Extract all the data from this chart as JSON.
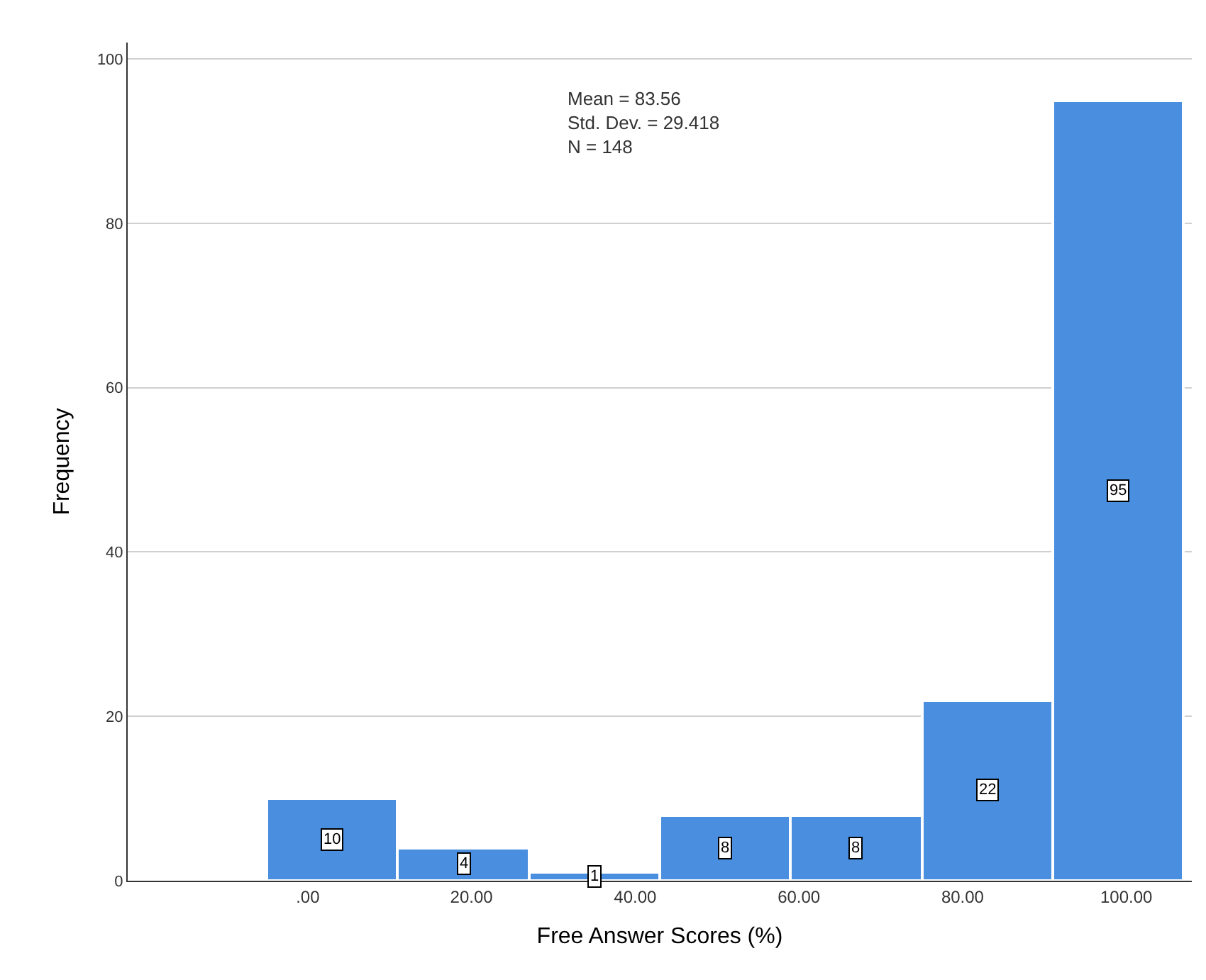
{
  "chart_data": {
    "type": "histogram",
    "xlabel": "Free Answer Scores (%)",
    "ylabel": "Frequency",
    "bins": [
      -5,
      11,
      27,
      43,
      59,
      75,
      91,
      107
    ],
    "values": [
      10,
      4,
      1,
      8,
      8,
      22,
      95
    ],
    "color": "#4a8ee0",
    "data_labels": true,
    "xlim": [
      -22,
      108
    ],
    "ylim": [
      0,
      102
    ],
    "xticks": [
      {
        "value": 0,
        "label": ".00"
      },
      {
        "value": 20,
        "label": "20.00"
      },
      {
        "value": 40,
        "label": "40.00"
      },
      {
        "value": 60,
        "label": "60.00"
      },
      {
        "value": 80,
        "label": "80.00"
      },
      {
        "value": 100,
        "label": "100.00"
      }
    ],
    "yticks": [
      0,
      20,
      40,
      60,
      80,
      100
    ],
    "grid": "y",
    "legend": false,
    "annotations": [
      "Mean = 83.56\nStd. Dev. = 29.418\nN = 148"
    ]
  }
}
